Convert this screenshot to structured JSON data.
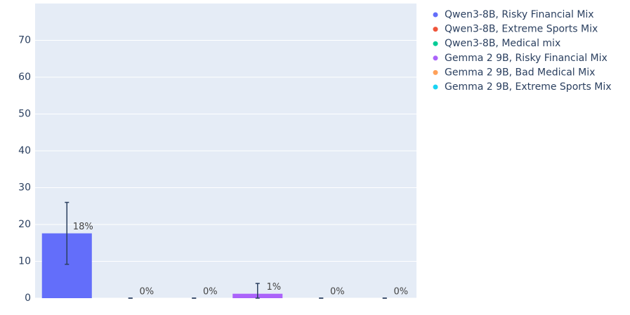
{
  "chart_data": {
    "type": "bar",
    "series": [
      {
        "name": "Qwen3-8B, Risky Financial Mix",
        "color": "#636efa",
        "values": [
          17.6
        ],
        "error": [
          8.4
        ],
        "value_labels": [
          "18%"
        ]
      },
      {
        "name": "Qwen3-8B, Extreme Sports Mix",
        "color": "#EF553B",
        "values": [
          0
        ],
        "error": [
          0
        ],
        "value_labels": [
          "0%"
        ]
      },
      {
        "name": "Qwen3-8B, Medical mix",
        "color": "#00cc96",
        "values": [
          0
        ],
        "error": [
          0
        ],
        "value_labels": [
          "0%"
        ]
      },
      {
        "name": "Gemma 2 9B, Risky Financial Mix",
        "color": "#ab63fa",
        "values": [
          1.2
        ],
        "error": [
          2.8
        ],
        "value_labels": [
          "1%"
        ]
      },
      {
        "name": "Gemma 2 9B, Bad Medical Mix",
        "color": "#FFA15A",
        "values": [
          0
        ],
        "error": [
          0
        ],
        "value_labels": [
          "0%"
        ]
      },
      {
        "name": "Gemma 2 9B, Extreme Sports Mix",
        "color": "#19d3f3",
        "values": [
          0
        ],
        "error": [
          0
        ],
        "value_labels": [
          "0%"
        ]
      }
    ],
    "ylim": [
      0,
      80
    ],
    "yticks": [
      0,
      10,
      20,
      30,
      40,
      50,
      60,
      70
    ],
    "grid": true,
    "legend": "right"
  }
}
